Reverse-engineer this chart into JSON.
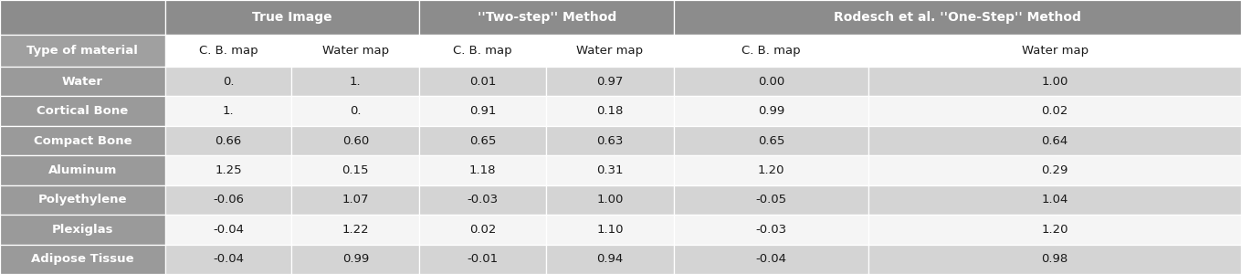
{
  "col_headers_row1_texts": [
    "True Image",
    "''Two-step'' Method",
    "Rodesch et al. ''One-Step'' Method"
  ],
  "col_headers_row2": [
    "Type of material",
    "C. B. map",
    "Water map",
    "C. B. map",
    "Water map",
    "C. B. map",
    "Water map"
  ],
  "rows": [
    [
      "Water",
      "0.",
      "1.",
      "0.01",
      "0.97",
      "0.00",
      "1.00"
    ],
    [
      "Cortical Bone",
      "1.",
      "0.",
      "0.91",
      "0.18",
      "0.99",
      "0.02"
    ],
    [
      "Compact Bone",
      "0.66",
      "0.60",
      "0.65",
      "0.63",
      "0.65",
      "0.64"
    ],
    [
      "Aluminum",
      "1.25",
      "0.15",
      "1.18",
      "0.31",
      "1.20",
      "0.29"
    ],
    [
      "Polyethylene",
      "-0.06",
      "1.07",
      "-0.03",
      "1.00",
      "-0.05",
      "1.04"
    ],
    [
      "Plexiglas",
      "-0.04",
      "1.22",
      "0.02",
      "1.10",
      "-0.03",
      "1.20"
    ],
    [
      "Adipose Tissue",
      "-0.04",
      "0.99",
      "-0.01",
      "0.94",
      "-0.04",
      "0.98"
    ]
  ],
  "header_bg": "#8c8c8c",
  "label_col_bg": "#9a9a9a",
  "subheader_label_bg": "#a0a0a0",
  "subheader_data_bg": "#ffffff",
  "row_bg_light": "#d4d4d4",
  "row_bg_white": "#f5f5f5",
  "text_white": "#ffffff",
  "text_dark": "#1a1a1a",
  "border_color": "#ffffff",
  "outer_border": "#5a5a5a",
  "figsize": [
    13.59,
    3.0
  ],
  "dpi": 100
}
